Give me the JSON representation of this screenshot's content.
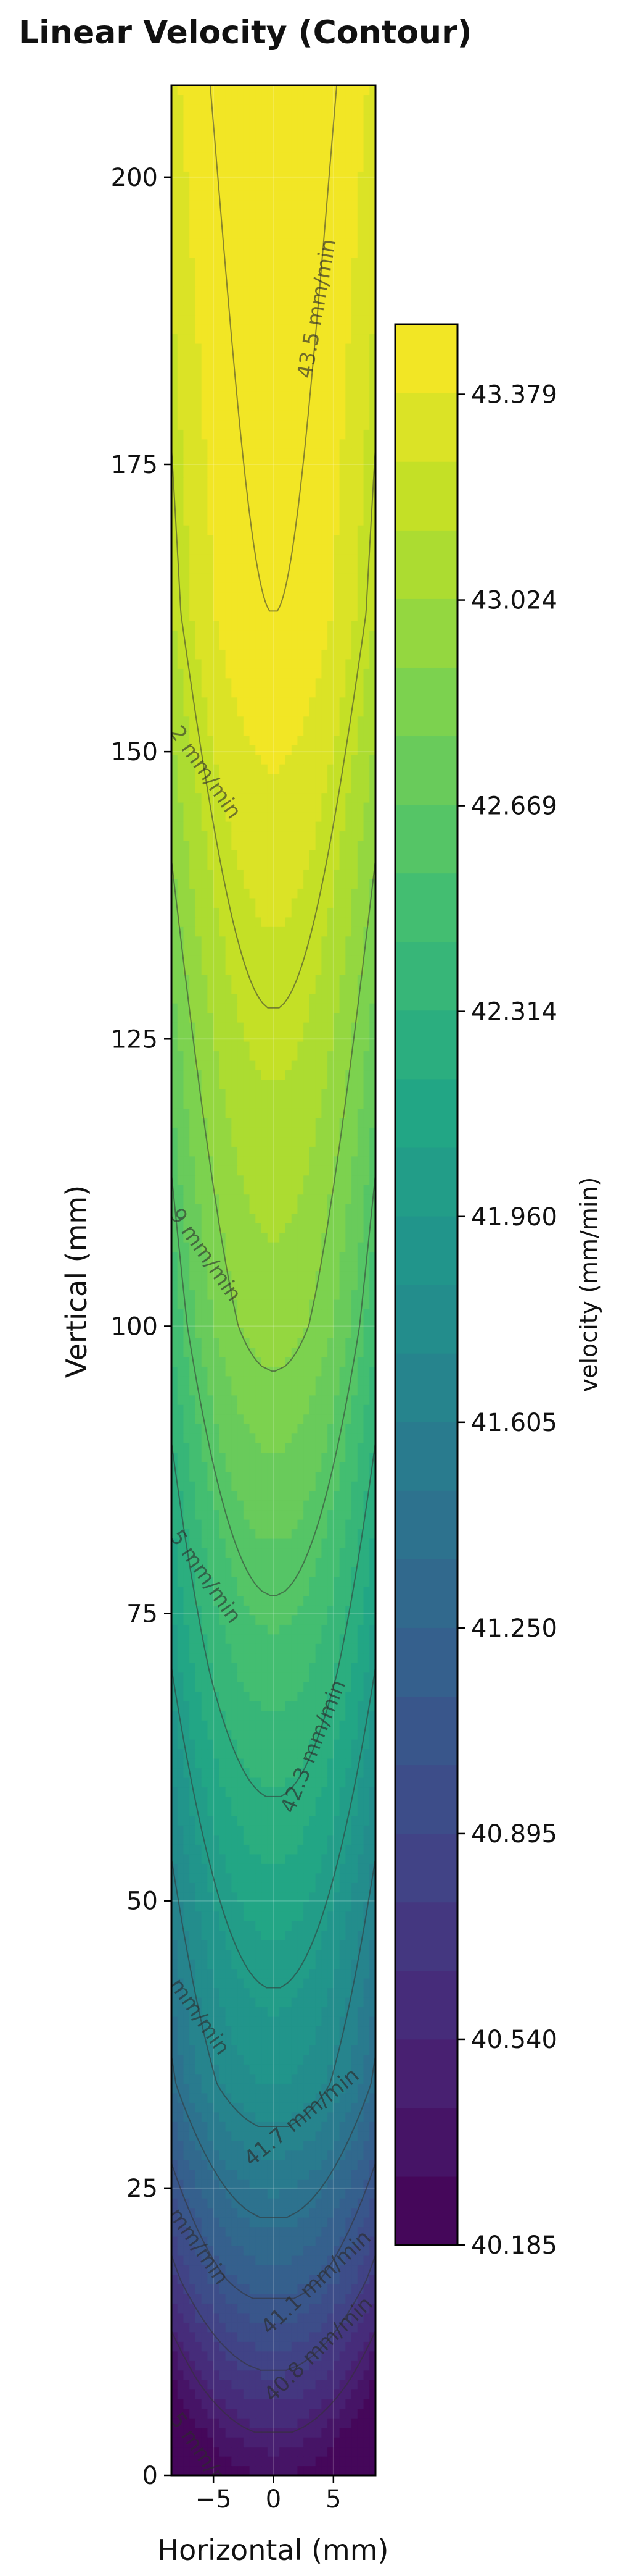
{
  "chart_data": {
    "type": "contour",
    "title": "Linear Velocity (Contour)",
    "xlabel": "Horizontal (mm)",
    "ylabel": "Vertical (mm)",
    "xlim": [
      -8.5,
      8.5
    ],
    "ylim": [
      0,
      208
    ],
    "x_ticks": [
      {
        "value": -5,
        "label": "−5"
      },
      {
        "value": 0,
        "label": "0"
      },
      {
        "value": 5,
        "label": "5"
      }
    ],
    "y_ticks": [
      {
        "value": 0,
        "label": "0"
      },
      {
        "value": 25,
        "label": "25"
      },
      {
        "value": 50,
        "label": "50"
      },
      {
        "value": 75,
        "label": "75"
      },
      {
        "value": 100,
        "label": "100"
      },
      {
        "value": 125,
        "label": "125"
      },
      {
        "value": 150,
        "label": "150"
      },
      {
        "value": 175,
        "label": "175"
      },
      {
        "value": 200,
        "label": "200"
      }
    ],
    "colorbar": {
      "label": "velocity (mm/min)",
      "colormap": "viridis",
      "min": 40.185,
      "max": 43.5,
      "levels": 28,
      "ticks": [
        {
          "value": 40.185,
          "label": "40.185"
        },
        {
          "value": 40.54,
          "label": "40.540"
        },
        {
          "value": 40.895,
          "label": "40.895"
        },
        {
          "value": 41.25,
          "label": "41.250"
        },
        {
          "value": 41.605,
          "label": "41.605"
        },
        {
          "value": 41.96,
          "label": "41.960"
        },
        {
          "value": 42.314,
          "label": "42.314"
        },
        {
          "value": 42.669,
          "label": "42.669"
        },
        {
          "value": 43.024,
          "label": "43.024"
        },
        {
          "value": 43.379,
          "label": "43.379"
        }
      ]
    },
    "field": {
      "description": "velocity at (x, y) = v0(y) - k(y) * x^2",
      "center_profile": [
        {
          "y": 0,
          "v": 40.31
        },
        {
          "y": 8,
          "v": 40.75
        },
        {
          "y": 17,
          "v": 41.2
        },
        {
          "y": 34,
          "v": 41.85
        },
        {
          "y": 70,
          "v": 42.5
        },
        {
          "y": 100,
          "v": 42.96
        },
        {
          "y": 162,
          "v": 43.5
        },
        {
          "y": 208,
          "v": 43.6
        }
      ],
      "curvature_profile": [
        {
          "y": 0,
          "k": 0.0065
        },
        {
          "y": 50,
          "k": 0.007
        },
        {
          "y": 100,
          "k": 0.007
        },
        {
          "y": 208,
          "k": 0.0036
        }
      ]
    },
    "contour_lines": [
      {
        "value": 40.5,
        "label": ""
      },
      {
        "value": 40.8,
        "label": "40.8 mm/min"
      },
      {
        "value": 41.1,
        "label": "41.1 mm/min"
      },
      {
        "value": 41.4,
        "label": ""
      },
      {
        "value": 41.7,
        "label": "41.7 mm/min"
      },
      {
        "value": 42.0,
        "label": ""
      },
      {
        "value": 42.3,
        "label": "42.3 mm/min"
      },
      {
        "value": 42.6,
        "label": ""
      },
      {
        "value": 42.9,
        "label": ""
      },
      {
        "value": 43.2,
        "label": ""
      },
      {
        "value": 43.5,
        "label": "43.5 mm/min"
      }
    ],
    "edge_labels": [
      {
        "x": -8.3,
        "y": 5.2,
        "label": "5 mm/min"
      },
      {
        "x": -8.4,
        "y": 23,
        "label": "mm/min"
      },
      {
        "x": -8.3,
        "y": 43,
        "label": "mm/min"
      },
      {
        "x": -8.3,
        "y": 82,
        "label": "5 mm/min"
      },
      {
        "x": -8.3,
        "y": 110,
        "label": "9 mm/min"
      },
      {
        "x": -8.3,
        "y": 152,
        "label": "2 mm/min"
      },
      {
        "x": -1.5,
        "y": 0.1,
        "label": "40.5 mm/min"
      }
    ],
    "grid": true
  }
}
